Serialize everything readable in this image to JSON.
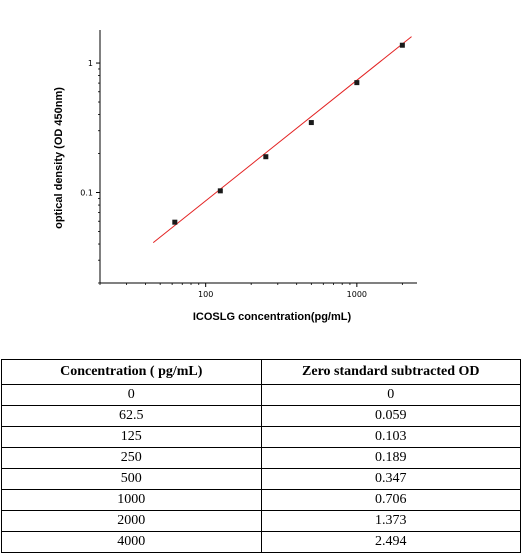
{
  "colors": {
    "fit_line": "#e32222",
    "points": "#1a1a1a",
    "axis": "#000000"
  },
  "chart_data": {
    "type": "scatter",
    "xlabel": "ICOSLG  concentration(pg/mL)",
    "ylabel": "optical density (OD 450nm)",
    "xscale": "log",
    "yscale": "log",
    "xlim": [
      20,
      2500
    ],
    "ylim": [
      0.02,
      1.8
    ],
    "x_ticks": [
      {
        "value": 100,
        "label": "100"
      },
      {
        "value": 1000,
        "label": "1000"
      }
    ],
    "y_ticks": [
      {
        "value": 0.1,
        "label": "0.1"
      },
      {
        "value": 1,
        "label": "1"
      }
    ],
    "grid": false,
    "series": [
      {
        "points": [
          [
            62.5,
            0.059
          ],
          [
            125,
            0.103
          ],
          [
            250,
            0.189
          ],
          [
            500,
            0.347
          ],
          [
            1000,
            0.706
          ],
          [
            2000,
            1.373
          ]
        ]
      }
    ],
    "fit_line": {
      "x": [
        45,
        2300
      ],
      "y": [
        0.041,
        1.6
      ]
    }
  },
  "table": {
    "headers": [
      "Concentration ( pg/mL)",
      "Zero standard subtracted OD"
    ],
    "rows": [
      [
        "0",
        "0"
      ],
      [
        "62.5",
        "0.059"
      ],
      [
        "125",
        "0.103"
      ],
      [
        "250",
        "0.189"
      ],
      [
        "500",
        "0.347"
      ],
      [
        "1000",
        "0.706"
      ],
      [
        "2000",
        "1.373"
      ],
      [
        "4000",
        "2.494"
      ]
    ]
  }
}
